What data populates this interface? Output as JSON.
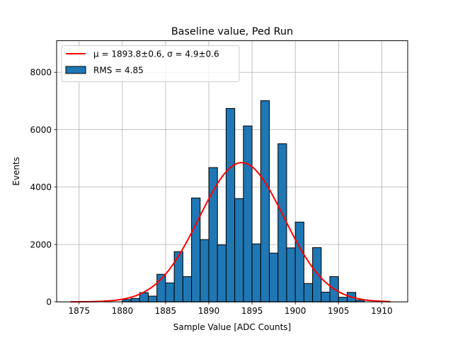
{
  "chart_data": {
    "type": "bar",
    "title": "Baseline value, Ped Run",
    "xlabel": "Sample Value [ADC Counts]",
    "ylabel": "Events",
    "xlim": [
      1872.4,
      1913.0
    ],
    "ylim": [
      0,
      9100
    ],
    "xticks": [
      1875,
      1880,
      1885,
      1890,
      1895,
      1900,
      1905,
      1910
    ],
    "yticks": [
      0,
      2000,
      4000,
      6000,
      8000
    ],
    "grid": true,
    "legend_position": "top-left",
    "bin_width": 1,
    "bins": [
      {
        "x": 1880,
        "value": 80
      },
      {
        "x": 1881,
        "value": 120
      },
      {
        "x": 1882,
        "value": 320
      },
      {
        "x": 1883,
        "value": 200
      },
      {
        "x": 1884,
        "value": 960
      },
      {
        "x": 1885,
        "value": 660
      },
      {
        "x": 1886,
        "value": 1750
      },
      {
        "x": 1887,
        "value": 880
      },
      {
        "x": 1888,
        "value": 3620
      },
      {
        "x": 1889,
        "value": 2170
      },
      {
        "x": 1890,
        "value": 4680
      },
      {
        "x": 1891,
        "value": 1990
      },
      {
        "x": 1892,
        "value": 6740
      },
      {
        "x": 1893,
        "value": 3600
      },
      {
        "x": 1894,
        "value": 6130
      },
      {
        "x": 1895,
        "value": 2020
      },
      {
        "x": 1896,
        "value": 7010
      },
      {
        "x": 1897,
        "value": 1700
      },
      {
        "x": 1898,
        "value": 5510
      },
      {
        "x": 1899,
        "value": 1880
      },
      {
        "x": 1900,
        "value": 2780
      },
      {
        "x": 1901,
        "value": 640
      },
      {
        "x": 1902,
        "value": 1890
      },
      {
        "x": 1903,
        "value": 340
      },
      {
        "x": 1904,
        "value": 880
      },
      {
        "x": 1905,
        "value": 160
      },
      {
        "x": 1906,
        "value": 330
      },
      {
        "x": 1907,
        "value": 60
      }
    ],
    "fit": {
      "mu": 1893.8,
      "sigma": 4.9,
      "amplitude": 4850,
      "x_range": [
        1874,
        1911
      ]
    },
    "legend": [
      {
        "label": "μ = 1893.8±0.6, σ = 4.9±0.6",
        "kind": "line",
        "color": "#ff0000"
      },
      {
        "label": "RMS = 4.85",
        "kind": "patch",
        "color": "#1f77b4"
      }
    ],
    "colors": {
      "bar": "#1f77b4",
      "bar_edge": "#000000",
      "fit_line": "#ff0000",
      "grid": "#b0b0b0"
    }
  }
}
